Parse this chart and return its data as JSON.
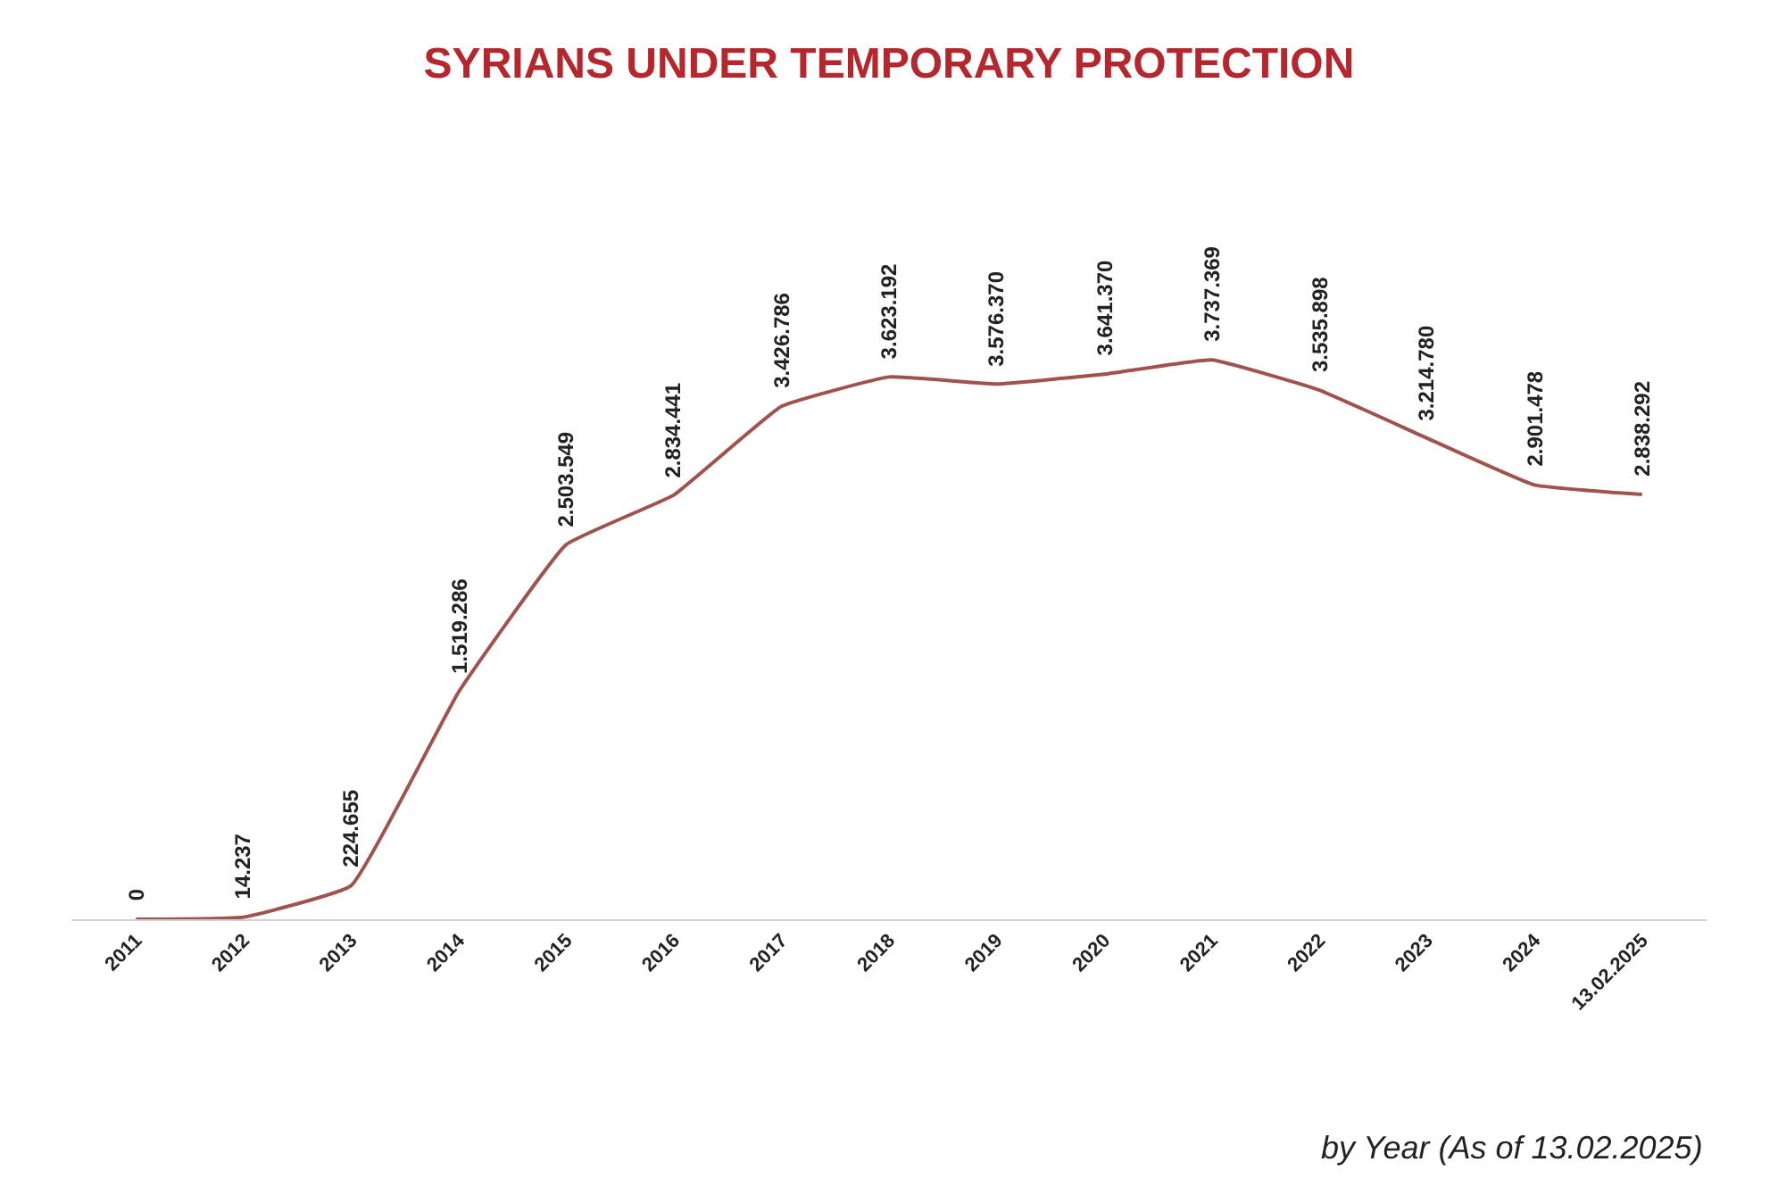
{
  "chart_data": {
    "type": "line",
    "title": "SYRIANS UNDER TEMPORARY PROTECTION",
    "categories": [
      "2011",
      "2012",
      "2013",
      "2014",
      "2015",
      "2016",
      "2017",
      "2018",
      "2019",
      "2020",
      "2021",
      "2022",
      "2023",
      "2024",
      "13.02.2025"
    ],
    "series": [
      {
        "color": "#a0524f",
        "values": [
          0,
          14237,
          224655,
          1519286,
          2503549,
          2834441,
          3426786,
          3623192,
          3576370,
          3641370,
          3737369,
          3535898,
          3214780,
          2901478,
          2838292
        ],
        "value_labels": [
          "0",
          "14.237",
          "224.655",
          "1.519.286",
          "2.503.549",
          "2.834.441",
          "3.426.786",
          "3.623.192",
          "3.576.370",
          "3.641.370",
          "3.737.369",
          "3.535.898",
          "3.214.780",
          "2.901.478",
          "2.838.292"
        ]
      }
    ],
    "annotations": [
      "by Year (As of 13.02.2025)"
    ],
    "marker": "none",
    "line_style": "solid"
  }
}
